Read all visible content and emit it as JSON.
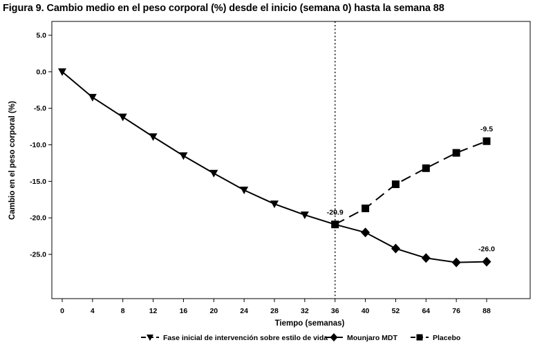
{
  "chart_data": {
    "type": "line",
    "title": "Figura 9. Cambio medio en el peso corporal (%) desde el inicio (semana 0) hasta la semana 88",
    "xlabel": "Tiempo (semanas)",
    "ylabel": "Cambio en el peso corporal (%)",
    "x_ticks": [
      0,
      4,
      8,
      12,
      16,
      20,
      24,
      28,
      32,
      36,
      40,
      52,
      64,
      76,
      88
    ],
    "x_tick_labels": [
      "0",
      "4",
      "8",
      "12",
      "16",
      "20",
      "24",
      "28",
      "32",
      "36",
      "40",
      "52",
      "64",
      "76",
      "88"
    ],
    "x_scale": "categorical-ordered",
    "ylim": [
      -30.5,
      6.8
    ],
    "y_ticks": [
      5,
      0,
      -5,
      -10,
      -15,
      -20,
      -25
    ],
    "y_tick_labels": [
      "5.0",
      "0.0",
      "-5.0",
      "-10.0",
      "-15.0",
      "-20.0",
      "-25.0"
    ],
    "grid": false,
    "legend_position": "bottom",
    "reference_line": {
      "x": 36,
      "style": "dotted"
    },
    "series": [
      {
        "name": "Fase inicial de intervención sobre estilo de vida",
        "marker": "triangle-down",
        "line_style": "solid",
        "x": [
          0,
          4,
          8,
          12,
          16,
          20,
          24,
          28,
          32,
          36
        ],
        "y": [
          0.0,
          -3.5,
          -6.2,
          -8.9,
          -11.5,
          -13.9,
          -16.2,
          -18.1,
          -19.6,
          -20.9
        ]
      },
      {
        "name": "Mounjaro MDT",
        "marker": "diamond",
        "line_style": "solid",
        "x": [
          36,
          40,
          52,
          64,
          76,
          88
        ],
        "y": [
          -20.9,
          -22.0,
          -24.2,
          -25.5,
          -26.1,
          -26.0
        ]
      },
      {
        "name": "Placebo",
        "marker": "square",
        "line_style": "dashed",
        "x": [
          36,
          40,
          52,
          64,
          76,
          88
        ],
        "y": [
          -20.9,
          -18.7,
          -15.4,
          -13.2,
          -11.1,
          -9.5
        ]
      }
    ],
    "annotations": [
      {
        "text": "-20.9",
        "x": 36,
        "y": -20.9,
        "position": "above"
      },
      {
        "text": "-9.5",
        "x": 88,
        "y": -9.5,
        "position": "above"
      },
      {
        "text": "-26.0",
        "x": 88,
        "y": -26.0,
        "position": "above"
      }
    ],
    "colors": {
      "line": "#000000",
      "background": "#ffffff"
    }
  }
}
